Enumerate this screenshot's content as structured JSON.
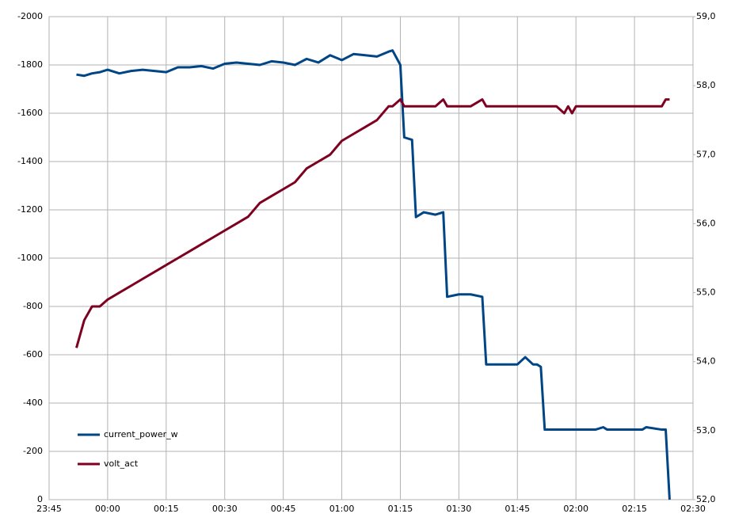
{
  "chart_data": {
    "type": "line",
    "x": [
      "23:52",
      "23:54",
      "23:56",
      "23:58",
      "00:00",
      "00:03",
      "00:06",
      "00:09",
      "00:12",
      "00:15",
      "00:18",
      "00:21",
      "00:24",
      "00:27",
      "00:30",
      "00:33",
      "00:36",
      "00:39",
      "00:42",
      "00:45",
      "00:48",
      "00:51",
      "00:54",
      "00:57",
      "01:00",
      "01:03",
      "01:06",
      "01:09",
      "01:12",
      "01:13",
      "01:15",
      "01:16",
      "01:18",
      "01:19",
      "01:21",
      "01:24",
      "01:26",
      "01:27",
      "01:30",
      "01:33",
      "01:36",
      "01:37",
      "01:40",
      "01:45",
      "01:47",
      "01:49",
      "01:50",
      "01:51",
      "01:52",
      "01:55",
      "01:57",
      "01:58",
      "01:59",
      "02:00",
      "02:05",
      "02:07",
      "02:08",
      "02:12",
      "02:17",
      "02:18",
      "02:22",
      "02:23",
      "02:24"
    ],
    "xlim": [
      "23:45",
      "02:30"
    ],
    "xticks": [
      "23:45",
      "00:00",
      "00:15",
      "00:30",
      "00:45",
      "01:00",
      "01:15",
      "01:30",
      "01:45",
      "02:00",
      "02:15",
      "02:30"
    ],
    "ylim": [
      0,
      -2000
    ],
    "yticks": [
      0,
      -200,
      -400,
      -600,
      -800,
      -1000,
      -1200,
      -1400,
      -1600,
      -1800,
      -2000
    ],
    "y2lim": [
      52,
      59
    ],
    "y2ticks": [
      {
        "value": 52,
        "label": "52,0"
      },
      {
        "value": 53,
        "label": "53,0"
      },
      {
        "value": 54,
        "label": "54,0"
      },
      {
        "value": 55,
        "label": "55,0"
      },
      {
        "value": 56,
        "label": "56,0"
      },
      {
        "value": 57,
        "label": "57,0"
      },
      {
        "value": 58,
        "label": "58,0"
      },
      {
        "value": 59,
        "label": "59,0"
      }
    ],
    "grid": true,
    "legend": "bottom-left",
    "series": [
      {
        "name": "current_power_w",
        "color": "#004586",
        "values": [
          -1760,
          -1755,
          -1765,
          -1770,
          -1780,
          -1765,
          -1775,
          -1780,
          -1775,
          -1770,
          -1790,
          -1790,
          -1795,
          -1785,
          -1805,
          -1810,
          -1805,
          -1800,
          -1815,
          -1810,
          -1800,
          -1825,
          -1810,
          -1840,
          -1820,
          -1845,
          -1840,
          -1835,
          -1855,
          -1860,
          -1800,
          -1500,
          -1490,
          -1170,
          -1190,
          -1180,
          -1190,
          -840,
          -850,
          -850,
          -840,
          -560,
          -560,
          -560,
          -590,
          -560,
          -560,
          -550,
          -290,
          -290,
          -290,
          -290,
          -290,
          -290,
          -290,
          -300,
          -290,
          -290,
          -290,
          -300,
          -290,
          -290,
          0
        ]
      },
      {
        "name": "volt_act",
        "color": "#7e0021",
        "axis": "y2",
        "values": [
          54.2,
          54.6,
          54.8,
          54.8,
          54.9,
          55.0,
          55.1,
          55.2,
          55.3,
          55.4,
          55.5,
          55.6,
          55.7,
          55.8,
          55.9,
          56.0,
          56.1,
          56.3,
          56.4,
          56.5,
          56.6,
          56.8,
          56.9,
          57.0,
          57.2,
          57.3,
          57.4,
          57.5,
          57.7,
          57.7,
          57.8,
          57.7,
          57.7,
          57.7,
          57.7,
          57.7,
          57.8,
          57.7,
          57.7,
          57.7,
          57.8,
          57.7,
          57.7,
          57.7,
          57.7,
          57.7,
          57.7,
          57.7,
          57.7,
          57.7,
          57.6,
          57.7,
          57.6,
          57.7,
          57.7,
          57.7,
          57.7,
          57.7,
          57.7,
          57.7,
          57.7,
          57.8,
          57.8
        ]
      }
    ]
  }
}
